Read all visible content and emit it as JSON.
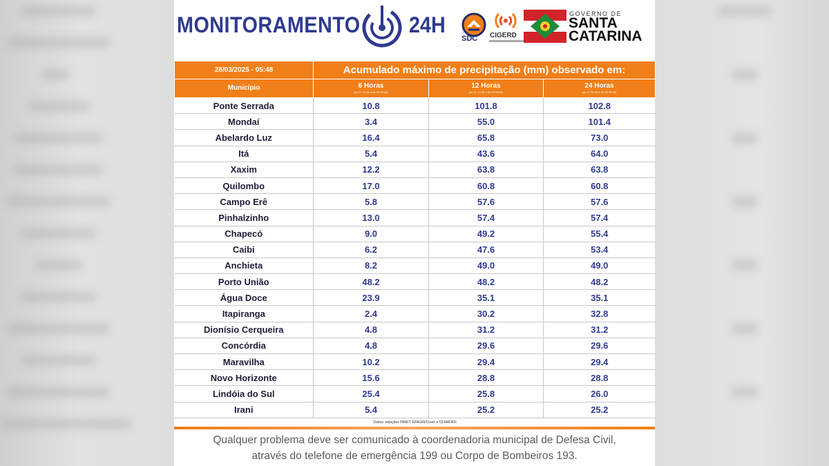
{
  "header": {
    "brand": "MONITORAMENTO",
    "brand_suffix": "24H",
    "logo_sdc": "SDC",
    "logo_cigerd": "CIGERD",
    "gov_label": "GOVERNO DE",
    "state_line1": "SANTA",
    "state_line2": "CATARINA"
  },
  "table": {
    "date": "28/03/2025 - 05:48",
    "title": "Acumulado máximo de precipitação (mm) observado em:",
    "columns": [
      {
        "label": "Município",
        "sub": ""
      },
      {
        "label": "6 Horas",
        "sub": "(de 27 23:48 a de 28 05:48)"
      },
      {
        "label": "12 Horas",
        "sub": "(de 27 17:48 a de 28 05:48)"
      },
      {
        "label": "24 Horas",
        "sub": "(de 27 05:48 a de 28 05:48)"
      }
    ],
    "rows": [
      {
        "municipio": "Ponte Serrada",
        "h6": "10.8",
        "h12": "101.8",
        "h24": "102.8"
      },
      {
        "municipio": "Mondaí",
        "h6": "3.4",
        "h12": "55.0",
        "h24": "101.4"
      },
      {
        "municipio": "Abelardo Luz",
        "h6": "16.4",
        "h12": "65.8",
        "h24": "73.0"
      },
      {
        "municipio": "Itá",
        "h6": "5.4",
        "h12": "43.6",
        "h24": "64.0"
      },
      {
        "municipio": "Xaxim",
        "h6": "12.2",
        "h12": "63.8",
        "h24": "63.8"
      },
      {
        "municipio": "Quilombo",
        "h6": "17.0",
        "h12": "60.8",
        "h24": "60.8"
      },
      {
        "municipio": "Campo Erê",
        "h6": "5.8",
        "h12": "57.6",
        "h24": "57.6"
      },
      {
        "municipio": "Pinhalzinho",
        "h6": "13.0",
        "h12": "57.4",
        "h24": "57.4"
      },
      {
        "municipio": "Chapecó",
        "h6": "9.0",
        "h12": "49.2",
        "h24": "55.4"
      },
      {
        "municipio": "Caibi",
        "h6": "6.2",
        "h12": "47.6",
        "h24": "53.4"
      },
      {
        "municipio": "Anchieta",
        "h6": "8.2",
        "h12": "49.0",
        "h24": "49.0"
      },
      {
        "municipio": "Porto União",
        "h6": "48.2",
        "h12": "48.2",
        "h24": "48.2"
      },
      {
        "municipio": "Água Doce",
        "h6": "23.9",
        "h12": "35.1",
        "h24": "35.1"
      },
      {
        "municipio": "Itapiranga",
        "h6": "2.4",
        "h12": "30.2",
        "h24": "32.8"
      },
      {
        "municipio": "Dionísio Cerqueira",
        "h6": "4.8",
        "h12": "31.2",
        "h24": "31.2"
      },
      {
        "municipio": "Concórdia",
        "h6": "4.8",
        "h12": "29.6",
        "h24": "29.6"
      },
      {
        "municipio": "Maravilha",
        "h6": "10.2",
        "h12": "29.4",
        "h24": "29.4"
      },
      {
        "municipio": "Novo Horizonte",
        "h6": "15.6",
        "h12": "28.8",
        "h24": "28.8"
      },
      {
        "municipio": "Lindóia do Sul",
        "h6": "25.4",
        "h12": "25.8",
        "h24": "26.0"
      },
      {
        "municipio": "Irani",
        "h6": "5.4",
        "h12": "25.2",
        "h24": "25.2"
      }
    ],
    "source": "Dados: estações INMET, EPAGRI/Ciram e CEMADEN"
  },
  "footer": {
    "line1": "Qualquer problema deve ser comunicado à coordenadoria municipal de Defesa Civil,",
    "line2": "através do telefone de emergência 199 ou Corpo de Bombeiros 193."
  },
  "colors": {
    "orange": "#f07f19",
    "navy": "#2f3a8f",
    "sc_red": "#d2232a",
    "sc_green": "#1f8b3a"
  },
  "icons": [
    "radar-icon",
    "sdc-shield-icon",
    "cigerd-signal-icon",
    "santa-catarina-flag-icon"
  ]
}
